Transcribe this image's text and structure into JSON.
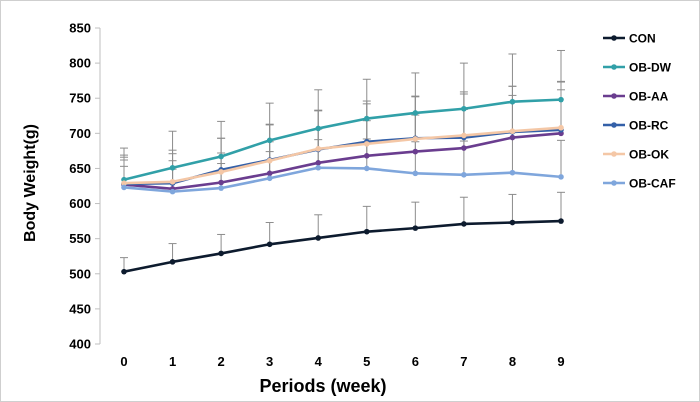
{
  "chart_data": {
    "type": "line",
    "title": "",
    "xlabel": "Periods (week)",
    "ylabel": "Body Weight(g)",
    "x": [
      0,
      1,
      2,
      3,
      4,
      5,
      6,
      7,
      8,
      9
    ],
    "ylim": [
      400,
      850
    ],
    "yticks": [
      400,
      450,
      500,
      550,
      600,
      650,
      700,
      750,
      800,
      850
    ],
    "grid": false,
    "legend_position": "right",
    "series": [
      {
        "name": "CON",
        "color": "#0d1b2e",
        "values": [
          503,
          517,
          529,
          542,
          551,
          560,
          565,
          571,
          573,
          575
        ],
        "errors": [
          20,
          26,
          27,
          31,
          33,
          36,
          37,
          38,
          40,
          41
        ]
      },
      {
        "name": "OB-DW",
        "color": "#31a0a8",
        "values": [
          634,
          651,
          667,
          690,
          707,
          721,
          729,
          735,
          745,
          748
        ],
        "errors": [
          45,
          52,
          50,
          53,
          55,
          56,
          57,
          65,
          68,
          70
        ]
      },
      {
        "name": "OB-AA",
        "color": "#6a3d8f",
        "values": [
          627,
          621,
          630,
          643,
          658,
          668,
          674,
          679,
          694,
          700
        ],
        "errors": [
          35,
          40,
          42,
          45,
          48,
          50,
          52,
          55,
          60,
          62
        ]
      },
      {
        "name": "OB-RC",
        "color": "#3460a8",
        "values": [
          628,
          629,
          648,
          662,
          677,
          688,
          693,
          694,
          702,
          705
        ],
        "errors": [
          38,
          42,
          45,
          50,
          55,
          58,
          60,
          62,
          65,
          68
        ]
      },
      {
        "name": "OB-OK",
        "color": "#f4c7a6",
        "values": [
          629,
          631,
          645,
          661,
          678,
          685,
          692,
          697,
          703,
          708
        ],
        "errors": [
          40,
          45,
          48,
          52,
          55,
          57,
          60,
          62,
          64,
          66
        ]
      },
      {
        "name": "OB-CAF",
        "color": "#7fa6dc",
        "values": [
          623,
          617,
          622,
          636,
          651,
          650,
          643,
          641,
          644,
          638
        ],
        "errors": [
          30,
          32,
          35,
          38,
          40,
          42,
          45,
          48,
          50,
          52
        ]
      }
    ]
  }
}
